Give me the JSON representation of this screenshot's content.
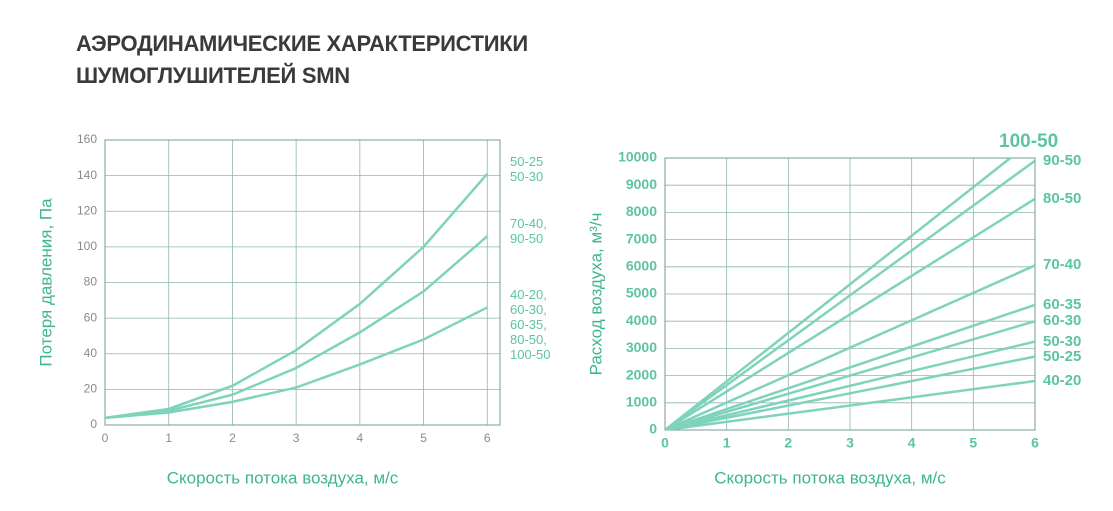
{
  "header": {
    "title_lines": [
      "АЭРОДИНАМИЧЕСКИЕ ХАРАКТЕРИСТИКИ",
      "ШУМОГЛУШИТЕЛЕЙ SMN"
    ]
  },
  "chart_data": [
    {
      "type": "line",
      "x_label": "Скорость потока воздуха, м/с",
      "y_label": "Потеря давления, Па",
      "x": [
        0,
        1,
        2,
        3,
        4,
        5,
        6
      ],
      "xlim": [
        0,
        6.2
      ],
      "xticks": [
        0,
        1,
        2,
        3,
        4,
        5,
        6
      ],
      "ylim": [
        0,
        160
      ],
      "yticks": [
        0,
        20,
        40,
        60,
        80,
        100,
        120,
        140,
        160
      ],
      "grid": true,
      "series": [
        {
          "name": "50-25\n50-30",
          "color": "#7fd3bb",
          "values": [
            4,
            9,
            22,
            42,
            68,
            100,
            141
          ]
        },
        {
          "name": "70-40,\n90-50",
          "color": "#7fd3bb",
          "values": [
            4,
            8,
            17,
            32,
            52,
            75,
            106
          ]
        },
        {
          "name": "40-20,\n60-30,\n60-35,\n80-50,\n100-50",
          "color": "#7fd3bb",
          "values": [
            4,
            7,
            13,
            21,
            34,
            48,
            66
          ]
        }
      ]
    },
    {
      "type": "line",
      "x_label": "Скорость потока воздуха, м/с",
      "y_label": "Расход воздуха, м³/ч",
      "x": [
        0,
        6
      ],
      "xlim": [
        0,
        6
      ],
      "xticks": [
        0,
        1,
        2,
        3,
        4,
        5,
        6
      ],
      "ylim": [
        0,
        10000
      ],
      "yticks": [
        0,
        1000,
        2000,
        3000,
        4000,
        5000,
        6000,
        7000,
        8000,
        9000,
        10000
      ],
      "grid": true,
      "series": [
        {
          "name": "100-50",
          "color": "#7fd3bb",
          "x": [
            0,
            5.6
          ],
          "values": [
            0,
            10000
          ]
        },
        {
          "name": "90-50",
          "color": "#7fd3bb",
          "values": [
            0,
            9900
          ]
        },
        {
          "name": "80-50",
          "color": "#7fd3bb",
          "values": [
            0,
            8500
          ]
        },
        {
          "name": "70-40",
          "color": "#7fd3bb",
          "values": [
            0,
            6050
          ]
        },
        {
          "name": "60-35",
          "color": "#7fd3bb",
          "values": [
            0,
            4600
          ]
        },
        {
          "name": "60-30",
          "color": "#7fd3bb",
          "values": [
            0,
            4000
          ]
        },
        {
          "name": "50-30",
          "color": "#7fd3bb",
          "values": [
            0,
            3250
          ]
        },
        {
          "name": "50-25",
          "color": "#7fd3bb",
          "values": [
            0,
            2700
          ]
        },
        {
          "name": "40-20",
          "color": "#7fd3bb",
          "values": [
            0,
            1800
          ]
        }
      ]
    }
  ]
}
